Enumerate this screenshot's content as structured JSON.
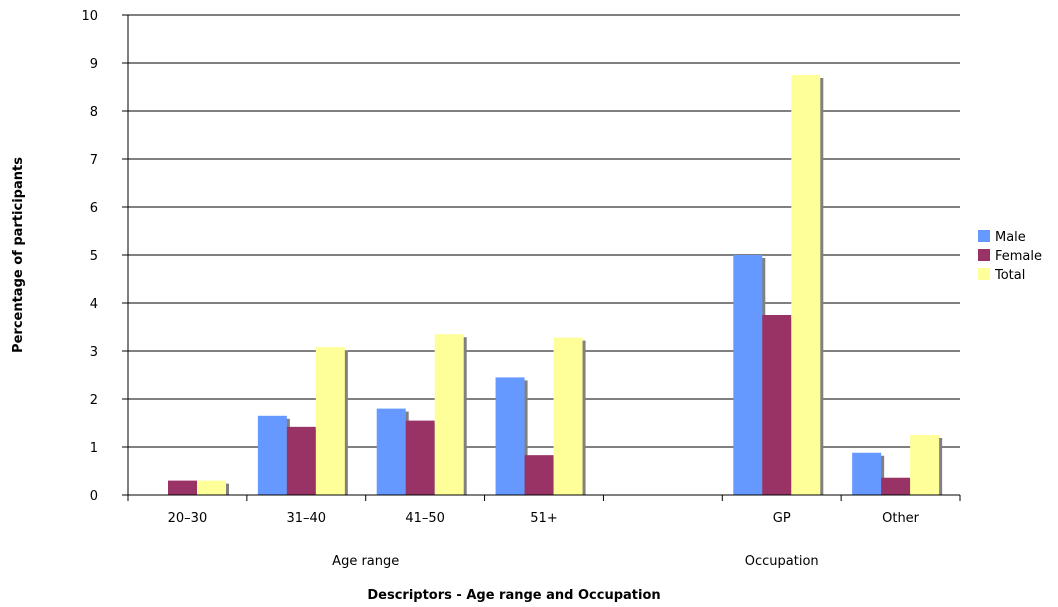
{
  "chart_data": {
    "type": "bar",
    "title": "",
    "xlabel": "Descriptors - Age range and Occupation",
    "ylabel": "Percentage of participants",
    "ylim": [
      0,
      10
    ],
    "yticks": [
      0,
      1,
      2,
      3,
      4,
      5,
      6,
      7,
      8,
      9,
      10
    ],
    "grid": true,
    "legend_position": "right",
    "categories": [
      "20–30",
      "31–40",
      "41–50",
      "51+",
      "",
      "GP",
      "Other"
    ],
    "groups": [
      {
        "label": "Age range"
      },
      {
        "label": "Occupation"
      }
    ],
    "series": [
      {
        "name": "Male",
        "color": "#6699ff",
        "values": [
          0,
          1.65,
          1.8,
          2.45,
          0,
          5.0,
          0.88
        ]
      },
      {
        "name": "Female",
        "color": "#993366",
        "values": [
          0.3,
          1.42,
          1.55,
          0.83,
          0,
          3.75,
          0.36
        ]
      },
      {
        "name": "Total",
        "color": "#ffff99",
        "values": [
          0.3,
          3.08,
          3.35,
          3.28,
          0,
          8.75,
          1.25
        ]
      }
    ]
  }
}
